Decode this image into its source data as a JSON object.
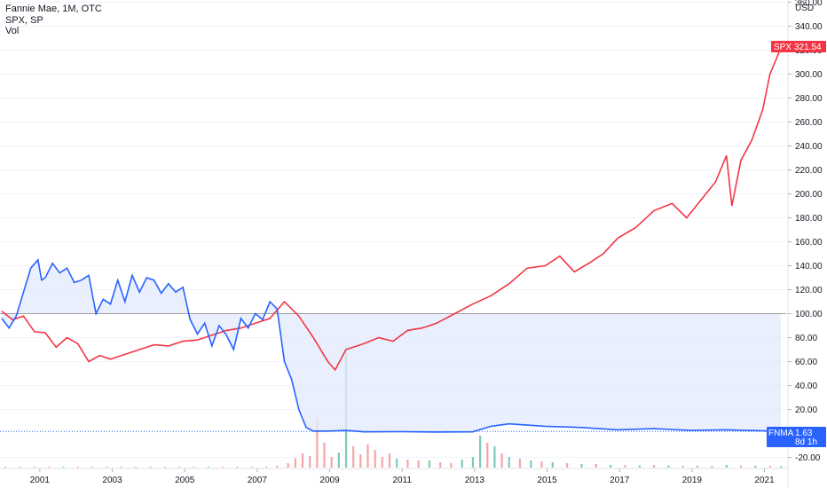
{
  "legend": {
    "line1": "Fannie Mae, 1M, OTC",
    "line2": "SPX, SP",
    "line3": "Vol"
  },
  "axis": {
    "currency": "USD"
  },
  "badges": {
    "spx_label": "SPX",
    "spx_value": "321.54",
    "fnma_label": "FNMA",
    "fnma_value": "1.63",
    "fnma_countdown": "8d 1h"
  },
  "colors": {
    "fnma": "#2962ff",
    "fnma_fill": "#e3ebfd",
    "spx": "#f23645",
    "vol_up": "#7fc9b8",
    "vol_down": "#f4a6a6",
    "baseline": "#9e9e9e"
  },
  "chart_data": {
    "type": "line",
    "y_axis": {
      "ticks": [
        "360.00",
        "340.00",
        "320.00",
        "300.00",
        "280.00",
        "260.00",
        "240.00",
        "220.00",
        "200.00",
        "180.00",
        "160.00",
        "140.00",
        "120.00",
        "100.00",
        "80.00",
        "60.00",
        "40.00",
        "20.00",
        "-20.00"
      ],
      "range": [
        -25,
        360
      ],
      "baseline": 100
    },
    "x_axis": {
      "ticks": [
        "2001",
        "2003",
        "2005",
        "2007",
        "2009",
        "2011",
        "2013",
        "2015",
        "2017",
        "2019",
        "2021"
      ],
      "range": [
        2000.0,
        2021.6
      ]
    },
    "series": [
      {
        "name": "Fannie Mae",
        "x": [
          2000.0,
          2000.2,
          2000.4,
          2000.6,
          2000.8,
          2001.0,
          2001.1,
          2001.2,
          2001.4,
          2001.6,
          2001.8,
          2002.0,
          2002.2,
          2002.4,
          2002.6,
          2002.8,
          2003.0,
          2003.2,
          2003.4,
          2003.6,
          2003.8,
          2004.0,
          2004.2,
          2004.4,
          2004.6,
          2004.8,
          2005.0,
          2005.2,
          2005.4,
          2005.6,
          2005.8,
          2006.0,
          2006.2,
          2006.4,
          2006.6,
          2006.8,
          2007.0,
          2007.2,
          2007.4,
          2007.6,
          2007.8,
          2008.0,
          2008.2,
          2008.4,
          2008.6,
          2008.8,
          2009.0,
          2009.5,
          2010.0,
          2011.0,
          2012.0,
          2013.0,
          2013.5,
          2014.0,
          2014.5,
          2015.0,
          2016.0,
          2017.0,
          2018.0,
          2019.0,
          2020.0,
          2020.5,
          2021.0,
          2021.3,
          2021.5
        ],
        "values": [
          96,
          88,
          98,
          118,
          138,
          145,
          128,
          130,
          142,
          134,
          138,
          126,
          128,
          132,
          100,
          112,
          108,
          128,
          110,
          132,
          118,
          130,
          128,
          117,
          125,
          118,
          122,
          95,
          83,
          92,
          73,
          90,
          82,
          70,
          96,
          88,
          100,
          95,
          110,
          104,
          60,
          45,
          20,
          5,
          2,
          2,
          2,
          2.5,
          1.3,
          1.5,
          1.2,
          1.3,
          6,
          8,
          7,
          6,
          5,
          3,
          4,
          2.5,
          3,
          2.5,
          2.3,
          1.6,
          1.63
        ]
      },
      {
        "name": "SPX",
        "x": [
          2000.0,
          2000.3,
          2000.6,
          2000.9,
          2001.2,
          2001.5,
          2001.8,
          2002.1,
          2002.4,
          2002.7,
          2003.0,
          2003.4,
          2003.8,
          2004.2,
          2004.6,
          2005.0,
          2005.4,
          2005.8,
          2006.2,
          2006.6,
          2007.0,
          2007.4,
          2007.8,
          2008.2,
          2008.6,
          2009.0,
          2009.2,
          2009.5,
          2010.0,
          2010.4,
          2010.8,
          2011.2,
          2011.6,
          2012.0,
          2012.5,
          2013.0,
          2013.5,
          2014.0,
          2014.5,
          2015.0,
          2015.4,
          2015.8,
          2016.2,
          2016.6,
          2017.0,
          2017.5,
          2018.0,
          2018.5,
          2018.9,
          2019.3,
          2019.7,
          2020.0,
          2020.15,
          2020.4,
          2020.7,
          2021.0,
          2021.2,
          2021.5
        ],
        "values": [
          102,
          95,
          98,
          85,
          84,
          72,
          80,
          75,
          60,
          65,
          62,
          66,
          70,
          74,
          73,
          77,
          78,
          82,
          86,
          88,
          92,
          96,
          110,
          98,
          80,
          60,
          53,
          70,
          75,
          80,
          77,
          86,
          88,
          92,
          100,
          108,
          115,
          125,
          138,
          140,
          148,
          135,
          142,
          150,
          163,
          172,
          186,
          192,
          180,
          195,
          210,
          232,
          190,
          228,
          245,
          270,
          300,
          321.54
        ]
      }
    ],
    "volume": {
      "x": [
        2000.1,
        2000.5,
        2000.9,
        2001.3,
        2001.7,
        2002.1,
        2002.5,
        2002.9,
        2003.3,
        2003.7,
        2004.1,
        2004.5,
        2004.9,
        2005.3,
        2005.7,
        2006.1,
        2006.5,
        2006.9,
        2007.3,
        2007.6,
        2007.9,
        2008.1,
        2008.3,
        2008.5,
        2008.7,
        2008.9,
        2009.1,
        2009.3,
        2009.5,
        2009.7,
        2009.9,
        2010.1,
        2010.3,
        2010.5,
        2010.7,
        2010.9,
        2011.2,
        2011.5,
        2011.8,
        2012.1,
        2012.4,
        2012.7,
        2013.0,
        2013.2,
        2013.4,
        2013.6,
        2013.8,
        2014.0,
        2014.3,
        2014.6,
        2014.9,
        2015.2,
        2015.6,
        2016.0,
        2016.4,
        2016.8,
        2017.2,
        2017.6,
        2018.0,
        2018.4,
        2018.8,
        2019.2,
        2019.6,
        2020.0,
        2020.4,
        2020.8,
        2021.2,
        2021.5
      ],
      "values": [
        0.3,
        0.4,
        0.3,
        0.4,
        0.3,
        0.4,
        0.3,
        0.4,
        0.3,
        0.3,
        0.4,
        0.3,
        0.4,
        0.3,
        0.4,
        0.3,
        0.3,
        0.4,
        0.6,
        1.0,
        2.5,
        5.2,
        8.0,
        6.5,
        28.0,
        14.0,
        6.0,
        8.5,
        68.0,
        12.0,
        7.5,
        13.0,
        10.0,
        6.0,
        8.0,
        5.0,
        4.5,
        4.0,
        4.0,
        3.0,
        2.5,
        4.5,
        6.0,
        18.0,
        14.0,
        12.0,
        8.0,
        6.0,
        5.0,
        4.0,
        3.5,
        3.0,
        2.5,
        2.0,
        2.0,
        1.5,
        1.5,
        1.2,
        1.5,
        1.2,
        1.0,
        1.0,
        1.0,
        1.5,
        1.2,
        1.0,
        1.0,
        0.8
      ],
      "up": [
        true,
        false,
        true,
        false,
        true,
        false,
        true,
        false,
        true,
        false,
        true,
        false,
        true,
        false,
        true,
        false,
        true,
        false,
        true,
        false,
        false,
        false,
        false,
        false,
        false,
        false,
        false,
        true,
        true,
        false,
        false,
        false,
        false,
        false,
        false,
        true,
        false,
        false,
        true,
        false,
        false,
        true,
        true,
        true,
        false,
        true,
        false,
        true,
        false,
        true,
        false,
        true,
        false,
        true,
        false,
        true,
        false,
        true,
        false,
        true,
        false,
        true,
        false,
        true,
        false,
        true,
        false,
        true
      ]
    }
  }
}
